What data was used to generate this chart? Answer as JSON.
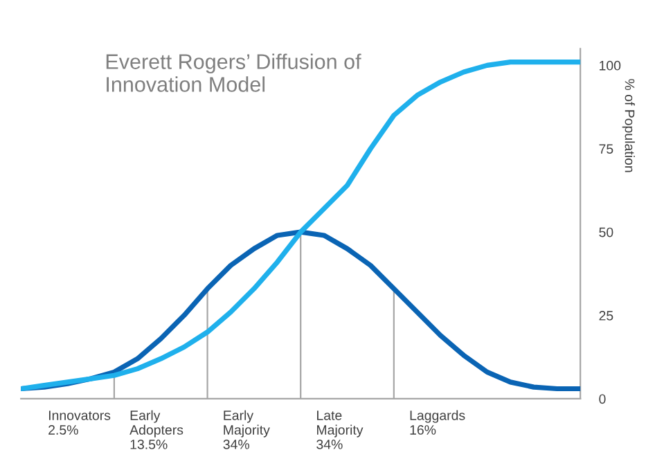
{
  "chart_data": {
    "type": "line",
    "title": "Everett Rogers’ Diffusion of\nInnovation Model",
    "ylabel": "% of Population",
    "categories": [
      null,
      null,
      null,
      null,
      null,
      null,
      null,
      null,
      null,
      null,
      null,
      null,
      null,
      null,
      null,
      null,
      null,
      null,
      null,
      null,
      null,
      null,
      null,
      null,
      null
    ],
    "series": [
      {
        "color": "#0a64b4",
        "values": [
          3,
          3.5,
          4.5,
          6,
          8,
          12,
          18,
          25,
          33,
          40,
          45,
          49,
          50,
          49,
          45,
          40,
          33,
          26,
          19,
          13,
          8,
          5,
          3.5,
          3,
          3
        ]
      },
      {
        "color": "#1fb0ec",
        "values": [
          3,
          4,
          5,
          6,
          7,
          9,
          12,
          15.5,
          20,
          26,
          33,
          41,
          50,
          57,
          64,
          75,
          85,
          91,
          95,
          98,
          100,
          101,
          101,
          101,
          101
        ]
      }
    ],
    "ylim": [
      0,
      105
    ],
    "yticks": [
      0,
      25,
      50,
      75,
      100
    ],
    "tick_labels": "y",
    "grid": false,
    "legend": false,
    "marker": "none",
    "line_style": "solid",
    "annotations": [
      "Innovators\n2.5%",
      "Early\nAdopters\n13.5%",
      "Early\nMajority\n34%",
      "Late\nMajority\n34%",
      "Laggards\n16%"
    ]
  }
}
